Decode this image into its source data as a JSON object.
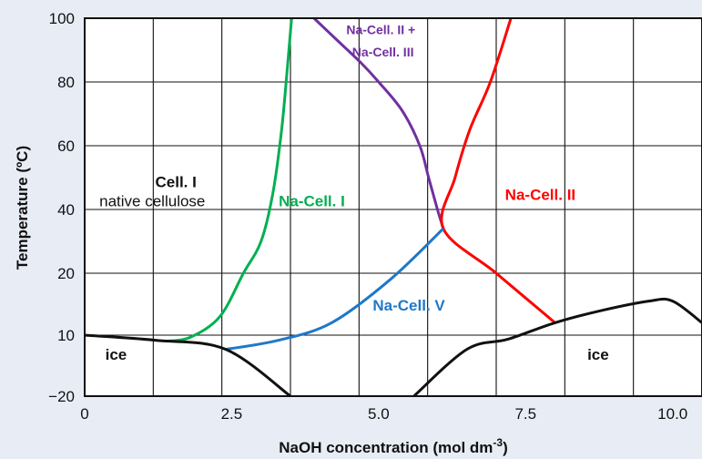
{
  "chart_data": {
    "type": "line",
    "title": "",
    "xlabel": "NaOH concentration (mol dm",
    "xlabel_sup": "-3",
    "xlabel_close": ")",
    "ylabel": "Temperature (ºC)",
    "x_ticks": [
      "0",
      "2.5",
      "5.0",
      "7.5",
      "10.0"
    ],
    "x_tick_values": [
      0,
      2.5,
      5.0,
      7.5,
      10.0
    ],
    "y_ticks": [
      "100",
      "80",
      "60",
      "40",
      "20",
      "10",
      "−20"
    ],
    "xlim": [
      0,
      10.5
    ],
    "ylim": [
      -20,
      100
    ],
    "grid": true,
    "series": [
      {
        "color": "#00b050",
        "points": [
          [
            1.4,
            7
          ],
          [
            1.8,
            9
          ],
          [
            2.3,
            13
          ],
          [
            2.7,
            20
          ],
          [
            3.0,
            30
          ],
          [
            3.2,
            45
          ],
          [
            3.35,
            65
          ],
          [
            3.45,
            85
          ],
          [
            3.52,
            100
          ]
        ]
      },
      {
        "color": "#7030a0",
        "points": [
          [
            3.9,
            100
          ],
          [
            4.3,
            93
          ],
          [
            4.7,
            86
          ],
          [
            5.0,
            80
          ],
          [
            5.4,
            71
          ],
          [
            5.7,
            60
          ],
          [
            5.85,
            50
          ],
          [
            6.0,
            40
          ],
          [
            6.1,
            34
          ]
        ]
      },
      {
        "color": "#ff0000",
        "points": [
          [
            8.0,
            12
          ],
          [
            7.0,
            20
          ],
          [
            6.1,
            34
          ],
          [
            6.3,
            50
          ],
          [
            6.55,
            65
          ],
          [
            6.9,
            80
          ],
          [
            7.25,
            100
          ]
        ]
      },
      {
        "color": "#1f78c8",
        "points": [
          [
            2.4,
            3
          ],
          [
            3.3,
            7.5
          ],
          [
            4.2,
            12
          ],
          [
            5.2,
            19
          ],
          [
            6.1,
            34
          ]
        ]
      },
      {
        "color": "#111111",
        "points": [
          [
            0,
            10
          ],
          [
            1.2,
            7.5
          ],
          [
            2.4,
            3
          ],
          [
            3.5,
            -20
          ]
        ]
      },
      {
        "color": "#111111",
        "points": [
          [
            5.6,
            -20
          ],
          [
            6.5,
            3
          ],
          [
            7.2,
            8
          ],
          [
            8.0,
            12
          ],
          [
            8.8,
            14
          ],
          [
            9.6,
            15.5
          ],
          [
            10.0,
            15.5
          ],
          [
            10.5,
            12
          ]
        ]
      }
    ],
    "annotations": [
      {
        "text": "Cell. I",
        "x": 1.2,
        "y": 47,
        "color": "#111111",
        "bold": true
      },
      {
        "text": "native cellulose",
        "x": 0.25,
        "y": 41,
        "color": "#111111",
        "bold": false
      },
      {
        "text": "Na-Cell. I",
        "x": 3.3,
        "y": 41,
        "color": "#00b050",
        "bold": true
      },
      {
        "text": "Na-Cell. II +",
        "x": 4.45,
        "y": 95,
        "color": "#7030a0",
        "bold": true,
        "small": true
      },
      {
        "text": "Na-Cell. III",
        "x": 4.55,
        "y": 88,
        "color": "#7030a0",
        "bold": true,
        "small": true
      },
      {
        "text": "Na-Cell. II",
        "x": 7.15,
        "y": 43,
        "color": "#ff0000",
        "bold": true
      },
      {
        "text": "Na-Cell. V",
        "x": 4.9,
        "y": 14,
        "color": "#1f78c8",
        "bold": true
      },
      {
        "text": "ice",
        "x": 0.35,
        "y": -2,
        "color": "#111111",
        "bold": true
      },
      {
        "text": "ice",
        "x": 8.55,
        "y": -2,
        "color": "#111111",
        "bold": true
      }
    ]
  }
}
